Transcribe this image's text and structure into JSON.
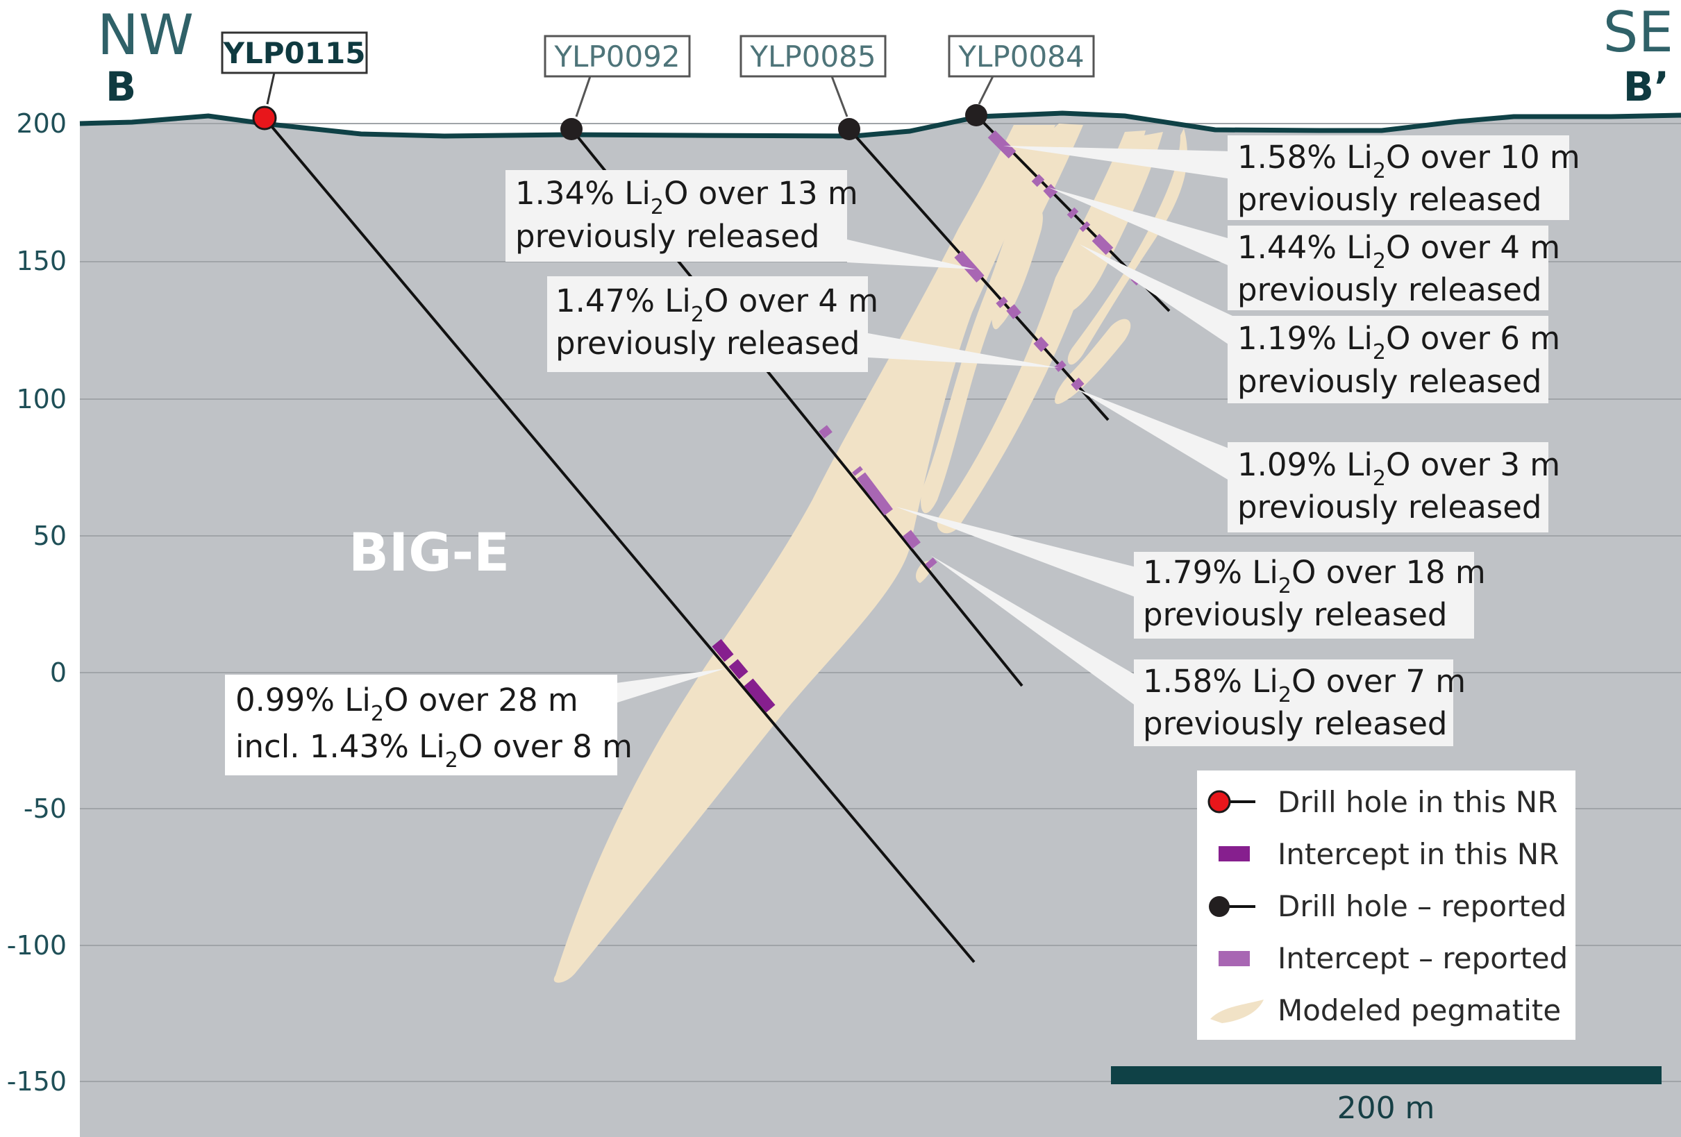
{
  "section": {
    "left_dir": "NW",
    "left_label": "B",
    "right_dir": "SE",
    "right_label": "B’",
    "block_label": "BIG-E",
    "scale_bar_label": "200 m"
  },
  "y_axis": {
    "ticks": [
      "200",
      "150",
      "100",
      "50",
      "0",
      "-50",
      "-100",
      "-150"
    ],
    "range": [
      -170,
      205
    ]
  },
  "drill_holes": [
    {
      "id": "YLP0115",
      "type": "this_nr",
      "color": "#e8161b"
    },
    {
      "id": "YLP0092",
      "type": "reported",
      "color": "#231f20"
    },
    {
      "id": "YLP0085",
      "type": "reported",
      "color": "#231f20"
    },
    {
      "id": "YLP0084",
      "type": "reported",
      "color": "#231f20"
    }
  ],
  "callouts": [
    {
      "grade": "1.58%",
      "length": "over 10 m",
      "note": "previously released"
    },
    {
      "grade": "1.34%",
      "length": "over 13 m",
      "note": "previously released"
    },
    {
      "grade": "1.44%",
      "length": "over 4 m",
      "note": "previously released"
    },
    {
      "grade": "1.19%",
      "length": "over 6 m",
      "note": "previously released"
    },
    {
      "grade": "1.47%",
      "length": "over 4 m",
      "note": "previously released"
    },
    {
      "grade": "1.09%",
      "length": "over 3 m",
      "note": "previously released"
    },
    {
      "grade": "1.79%",
      "length": "over 18 m",
      "note": "previously released"
    },
    {
      "grade": "1.58%",
      "length": "over 7 m",
      "note": "previously released"
    }
  ],
  "main_callout": {
    "line1_grade": "0.99%",
    "line1_length": "over 28 m",
    "line2_prefix": "incl. 1.43%",
    "line2_length": "over 8 m"
  },
  "chem": {
    "li": "Li",
    "sub": "2",
    "o": "O"
  },
  "legend": [
    {
      "label": "Drill hole in this NR",
      "symbol": "hole-red"
    },
    {
      "label": "Intercept in this NR",
      "symbol": "intercept-dark"
    },
    {
      "label": "Drill hole – reported",
      "symbol": "hole-black"
    },
    {
      "label": "Intercept – reported",
      "symbol": "intercept-light"
    },
    {
      "label": "Modeled pegmatite",
      "symbol": "pegmatite"
    }
  ],
  "colors": {
    "bedrock": "#bfc2c6",
    "pegmatite": "#f1e2c6",
    "topography": "#0f4146",
    "intercept_this_nr": "#861f8e",
    "intercept_reported": "#a866b3",
    "label_box": "#f3f3f3",
    "tag_border": "#555555",
    "tag_text_this_nr": "#0f3a40",
    "tag_text_reported": "#4e7479"
  }
}
